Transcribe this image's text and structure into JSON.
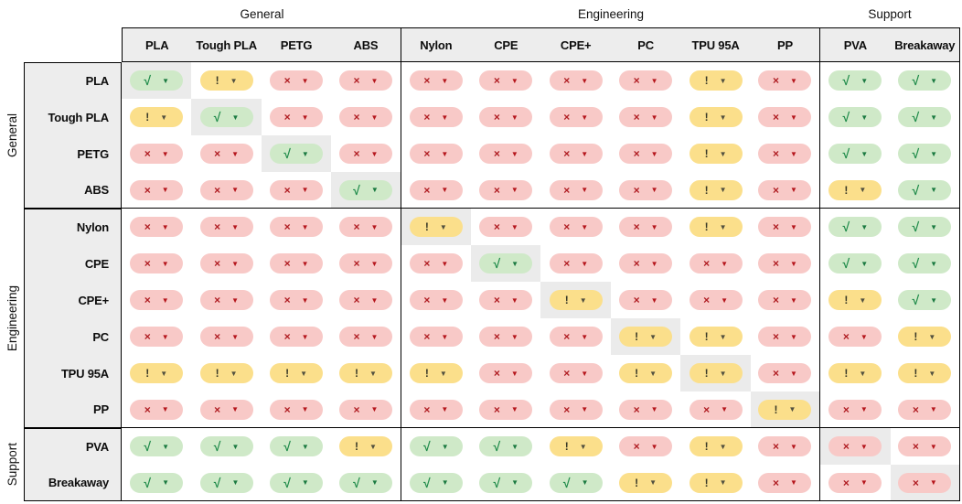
{
  "column_groups": [
    {
      "label": "General"
    },
    {
      "label": "Engineering"
    },
    {
      "label": "Support"
    }
  ],
  "row_groups": [
    {
      "label": "General"
    },
    {
      "label": "Engineering"
    },
    {
      "label": "Support"
    }
  ],
  "columns": [
    "PLA",
    "Tough PLA",
    "PETG",
    "ABS",
    "Nylon",
    "CPE",
    "CPE+",
    "PC",
    "TPU 95A",
    "PP",
    "PVA",
    "Breakaway"
  ],
  "legend_states": {
    "ok": {
      "symbol": "√",
      "icon_name": "check-icon",
      "bg": "#cfe9c8",
      "fg": "#218c4b",
      "caret": "#1b7a41"
    },
    "warn": {
      "symbol": "!",
      "icon_name": "warning-icon",
      "bg": "#fbdf8b",
      "fg": "#3a3a28",
      "caret": "#51503f"
    },
    "no": {
      "symbol": "×",
      "icon_name": "cross-icon",
      "bg": "#f8c9c7",
      "fg": "#b01e23",
      "caret": "#b5161c"
    }
  },
  "ui": {
    "dropdown_icon": "▼",
    "header_bg": "#ededed",
    "diagonal_bg": "#ebebeb",
    "border_color": "#000000"
  },
  "rows": [
    {
      "label": "PLA",
      "group": "General",
      "cells": [
        "ok",
        "warn",
        "no",
        "no",
        "no",
        "no",
        "no",
        "no",
        "warn",
        "no",
        "ok",
        "ok"
      ]
    },
    {
      "label": "Tough PLA",
      "group": "General",
      "cells": [
        "warn",
        "ok",
        "no",
        "no",
        "no",
        "no",
        "no",
        "no",
        "warn",
        "no",
        "ok",
        "ok"
      ]
    },
    {
      "label": "PETG",
      "group": "General",
      "cells": [
        "no",
        "no",
        "ok",
        "no",
        "no",
        "no",
        "no",
        "no",
        "warn",
        "no",
        "ok",
        "ok"
      ]
    },
    {
      "label": "ABS",
      "group": "General",
      "cells": [
        "no",
        "no",
        "no",
        "ok",
        "no",
        "no",
        "no",
        "no",
        "warn",
        "no",
        "warn",
        "ok"
      ]
    },
    {
      "label": "Nylon",
      "group": "Engineering",
      "cells": [
        "no",
        "no",
        "no",
        "no",
        "warn",
        "no",
        "no",
        "no",
        "warn",
        "no",
        "ok",
        "ok"
      ]
    },
    {
      "label": "CPE",
      "group": "Engineering",
      "cells": [
        "no",
        "no",
        "no",
        "no",
        "no",
        "ok",
        "no",
        "no",
        "no",
        "no",
        "ok",
        "ok"
      ]
    },
    {
      "label": "CPE+",
      "group": "Engineering",
      "cells": [
        "no",
        "no",
        "no",
        "no",
        "no",
        "no",
        "warn",
        "no",
        "no",
        "no",
        "warn",
        "ok"
      ]
    },
    {
      "label": "PC",
      "group": "Engineering",
      "cells": [
        "no",
        "no",
        "no",
        "no",
        "no",
        "no",
        "no",
        "warn",
        "warn",
        "no",
        "no",
        "warn"
      ]
    },
    {
      "label": "TPU 95A",
      "group": "Engineering",
      "cells": [
        "warn",
        "warn",
        "warn",
        "warn",
        "warn",
        "no",
        "no",
        "warn",
        "warn",
        "no",
        "warn",
        "warn"
      ]
    },
    {
      "label": "PP",
      "group": "Engineering",
      "cells": [
        "no",
        "no",
        "no",
        "no",
        "no",
        "no",
        "no",
        "no",
        "no",
        "warn",
        "no",
        "no"
      ]
    },
    {
      "label": "PVA",
      "group": "Support",
      "cells": [
        "ok",
        "ok",
        "ok",
        "warn",
        "ok",
        "ok",
        "warn",
        "no",
        "warn",
        "no",
        "no",
        "no"
      ]
    },
    {
      "label": "Breakaway",
      "group": "Support",
      "cells": [
        "ok",
        "ok",
        "ok",
        "ok",
        "ok",
        "ok",
        "ok",
        "warn",
        "warn",
        "no",
        "no",
        "no"
      ]
    }
  ]
}
